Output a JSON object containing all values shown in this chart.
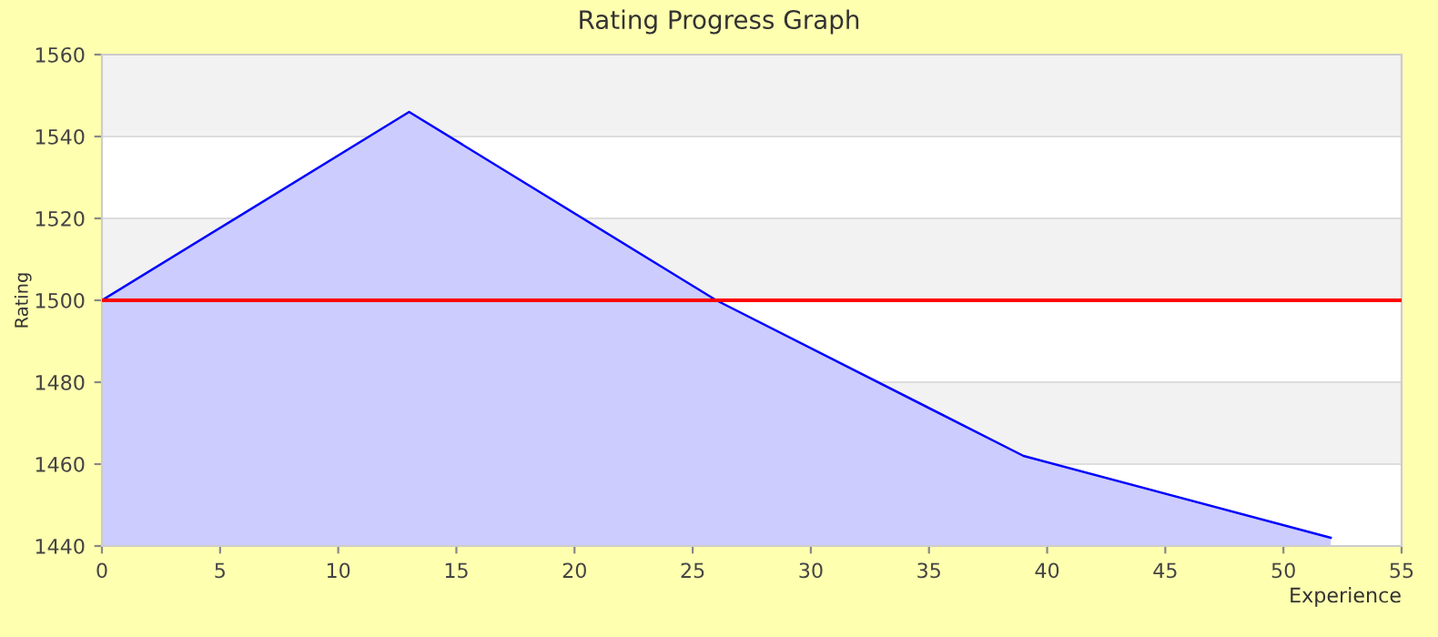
{
  "chart_data": {
    "type": "area",
    "title": "Rating Progress Graph",
    "xlabel": "Experience",
    "ylabel": "Rating",
    "x": [
      0,
      13,
      26,
      39,
      52
    ],
    "series": [
      {
        "color": "#0000ff",
        "values": [
          1500,
          1546,
          1500,
          1462,
          1442
        ]
      }
    ],
    "xlim": [
      0,
      55
    ],
    "xticks": [
      0,
      5,
      10,
      15,
      20,
      25,
      30,
      35,
      40,
      45,
      50,
      55
    ],
    "ylim": [
      1440,
      1560
    ],
    "yticks": [
      1440,
      1460,
      1480,
      1500,
      1520,
      1540,
      1560
    ],
    "grid": "y",
    "legend": false,
    "ref_lines": [
      {
        "axis": "y",
        "value": 1500,
        "color": "#ff0000"
      }
    ]
  }
}
